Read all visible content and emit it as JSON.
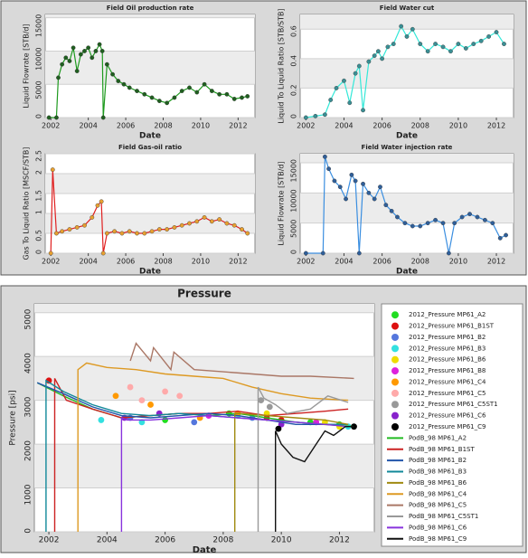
{
  "chart_data": [
    {
      "type": "line",
      "title": "Field Oil production rate",
      "xlabel": "Date",
      "ylabel": "Liquid Flowrate [STB/d]",
      "xlim": [
        2001.7,
        2012.9
      ],
      "xticks": [
        2002,
        2004,
        2006,
        2008,
        2010,
        2012
      ],
      "ylim": [
        0,
        15500
      ],
      "yticks": [
        0,
        5000,
        10000,
        15000
      ],
      "grid": true,
      "markers": true,
      "series": [
        {
          "color": "#1e9a1e",
          "marker_color": "#1f5f1f",
          "x": [
            2001.9,
            2002.3,
            2002.4,
            2002.6,
            2002.8,
            2003.0,
            2003.2,
            2003.4,
            2003.6,
            2003.8,
            2004.0,
            2004.2,
            2004.4,
            2004.6,
            2004.75,
            2004.8,
            2005.0,
            2005.3,
            2005.6,
            2005.9,
            2006.2,
            2006.6,
            2007.0,
            2007.4,
            2007.8,
            2008.2,
            2008.6,
            2009.0,
            2009.4,
            2009.8,
            2010.2,
            2010.6,
            2011.0,
            2011.4,
            2011.8,
            2012.2,
            2012.5
          ],
          "values": [
            0,
            0,
            6000,
            8000,
            9000,
            8500,
            10500,
            7000,
            9500,
            10000,
            10500,
            9000,
            10000,
            11000,
            10000,
            0,
            8000,
            6500,
            5500,
            5000,
            4500,
            4000,
            3500,
            3000,
            2500,
            2200,
            3000,
            4000,
            4500,
            3800,
            5000,
            4000,
            3500,
            3500,
            2800,
            3000,
            3200
          ]
        }
      ]
    },
    {
      "type": "line",
      "title": "Field Water cut",
      "xlabel": "Date",
      "ylabel": "Liquid To Liquid Ratio [STB/STB]",
      "xlim": [
        2001.7,
        2012.9
      ],
      "xticks": [
        2002,
        2004,
        2006,
        2008,
        2010,
        2012
      ],
      "ylim": [
        0,
        0.7
      ],
      "yticks": [
        0,
        0.2,
        0.4,
        0.6
      ],
      "grid": true,
      "markers": true,
      "series": [
        {
          "color": "#33e8d8",
          "marker_color": "#3a8f95",
          "x": [
            2002.0,
            2002.5,
            2003.0,
            2003.3,
            2003.6,
            2004.0,
            2004.3,
            2004.6,
            2004.8,
            2005.0,
            2005.3,
            2005.6,
            2005.8,
            2006.0,
            2006.3,
            2006.6,
            2007.0,
            2007.3,
            2007.6,
            2008.0,
            2008.4,
            2008.8,
            2009.2,
            2009.6,
            2010.0,
            2010.4,
            2010.8,
            2011.2,
            2011.6,
            2012.0,
            2012.4
          ],
          "values": [
            0,
            0.01,
            0.02,
            0.12,
            0.2,
            0.25,
            0.1,
            0.3,
            0.35,
            0.05,
            0.38,
            0.42,
            0.45,
            0.4,
            0.48,
            0.5,
            0.62,
            0.55,
            0.6,
            0.5,
            0.45,
            0.5,
            0.48,
            0.45,
            0.5,
            0.47,
            0.5,
            0.52,
            0.55,
            0.58,
            0.5
          ]
        }
      ]
    },
    {
      "type": "line",
      "title": "Field Gas-oil ratio",
      "xlabel": "Date",
      "ylabel": "Gas To Liquid Ratio [MSCF/STB]",
      "xlim": [
        2001.7,
        2012.9
      ],
      "xticks": [
        2002,
        2004,
        2006,
        2008,
        2010,
        2012
      ],
      "ylim": [
        0,
        2.5
      ],
      "yticks": [
        0,
        0.5,
        1,
        1.5,
        2,
        2.5
      ],
      "grid": true,
      "markers": true,
      "series": [
        {
          "color": "#e02020",
          "marker_color": "#e8a030",
          "x": [
            2002.0,
            2002.1,
            2002.3,
            2002.6,
            2003.0,
            2003.4,
            2003.8,
            2004.2,
            2004.5,
            2004.7,
            2004.8,
            2005.0,
            2005.4,
            2005.8,
            2006.2,
            2006.6,
            2007.0,
            2007.4,
            2007.8,
            2008.2,
            2008.6,
            2009.0,
            2009.4,
            2009.8,
            2010.2,
            2010.6,
            2011.0,
            2011.4,
            2011.8,
            2012.2,
            2012.5
          ],
          "values": [
            0,
            2.1,
            0.5,
            0.55,
            0.6,
            0.65,
            0.7,
            0.9,
            1.2,
            1.3,
            0,
            0.5,
            0.55,
            0.5,
            0.55,
            0.5,
            0.5,
            0.55,
            0.6,
            0.6,
            0.65,
            0.7,
            0.75,
            0.8,
            0.9,
            0.8,
            0.85,
            0.75,
            0.7,
            0.6,
            0.5
          ]
        }
      ]
    },
    {
      "type": "line",
      "title": "Field Water injection rate",
      "xlabel": "Date",
      "ylabel": "Liquid Flowrate [STB/d]",
      "xlim": [
        2001.7,
        2012.9
      ],
      "xticks": [
        2002,
        2004,
        2006,
        2008,
        2010,
        2012
      ],
      "ylim": [
        0,
        16500
      ],
      "yticks": [
        0,
        5000,
        10000,
        15000
      ],
      "grid": true,
      "markers": true,
      "series": [
        {
          "color": "#3a8ee0",
          "marker_color": "#2f5f9a",
          "x": [
            2002.0,
            2002.9,
            2003.0,
            2003.2,
            2003.5,
            2003.8,
            2004.1,
            2004.4,
            2004.6,
            2004.8,
            2005.0,
            2005.3,
            2005.6,
            2005.9,
            2006.2,
            2006.5,
            2006.8,
            2007.2,
            2007.6,
            2008.0,
            2008.4,
            2008.8,
            2009.2,
            2009.5,
            2009.8,
            2010.2,
            2010.6,
            2011.0,
            2011.4,
            2011.8,
            2012.2,
            2012.5
          ],
          "values": [
            0,
            0,
            16000,
            14000,
            12000,
            11000,
            9000,
            13000,
            12000,
            0,
            11500,
            10000,
            9000,
            11000,
            8000,
            7000,
            6000,
            5000,
            4500,
            4500,
            5000,
            5500,
            5000,
            0,
            5000,
            6000,
            6500,
            6000,
            5500,
            5000,
            2500,
            3000
          ]
        }
      ]
    },
    {
      "type": "line",
      "title": "Pressure",
      "xlabel": "Date",
      "ylabel": "Pressure [psi]",
      "xlim": [
        2001.5,
        2013.2
      ],
      "xticks": [
        2002,
        2004,
        2006,
        2008,
        2010,
        2012
      ],
      "ylim": [
        0,
        5200
      ],
      "yticks": [
        0,
        1000,
        2000,
        3000,
        4000,
        5000
      ],
      "grid": true,
      "legend": "right",
      "series": [
        {
          "name": "2012_Pressure MP61_A2",
          "style": "markers",
          "color": "#22dd22",
          "x": [
            2006.0,
            2008.2,
            2011.0,
            2012.0
          ],
          "values": [
            2550,
            2700,
            2500,
            2450
          ]
        },
        {
          "name": "2012_Pressure MP61_B1ST",
          "style": "markers",
          "color": "#dd1111",
          "x": [
            2002.0,
            2009.5,
            2010.0
          ],
          "values": [
            3450,
            2600,
            2550
          ]
        },
        {
          "name": "2012_Pressure MP61_B2",
          "style": "markers",
          "color": "#5577dd",
          "x": [
            2004.8,
            2007.0,
            2009.0
          ],
          "values": [
            2600,
            2500,
            2600
          ]
        },
        {
          "name": "2012_Pressure MP61_B3",
          "style": "markers",
          "color": "#33e0e0",
          "x": [
            2003.8,
            2005.2,
            2008.5,
            2012.3
          ],
          "values": [
            2550,
            2500,
            2650,
            2400
          ]
        },
        {
          "name": "2012_Pressure MP61_B6",
          "style": "markers",
          "color": "#eedd00",
          "x": [
            2009.5,
            2011.5,
            2012.0
          ],
          "values": [
            2700,
            2500,
            2400
          ]
        },
        {
          "name": "2012_Pressure MP61_B8",
          "style": "markers",
          "color": "#dd22dd",
          "x": [
            2007.5,
            2011.2
          ],
          "values": [
            2650,
            2500
          ]
        },
        {
          "name": "2012_Pressure MP61_C4",
          "style": "markers",
          "color": "#ff9900",
          "x": [
            2004.3,
            2005.5,
            2007.2,
            2008.5
          ],
          "values": [
            3100,
            2900,
            2600,
            2700
          ]
        },
        {
          "name": "2012_Pressure MP61_C5",
          "style": "markers",
          "color": "#ffaaaa",
          "x": [
            2004.8,
            2005.2,
            2006.0,
            2006.5
          ],
          "values": [
            3300,
            3000,
            3200,
            3100
          ]
        },
        {
          "name": "2012_Pressure MP61_C5ST1",
          "style": "markers",
          "color": "#999999",
          "x": [
            2009.3,
            2009.6
          ],
          "values": [
            3000,
            2850
          ]
        },
        {
          "name": "2012_Pressure MP61_C6",
          "style": "markers",
          "color": "#8822cc",
          "x": [
            2004.6,
            2005.8,
            2010.0
          ],
          "values": [
            2600,
            2700,
            2450
          ]
        },
        {
          "name": "2012_Pressure MP61_C9",
          "style": "markers",
          "color": "#000000",
          "x": [
            2009.9,
            2012.5
          ],
          "values": [
            2350,
            2400
          ]
        },
        {
          "name": "PodB_98 MP61_A2",
          "style": "line",
          "color": "#22bb22",
          "x": [
            2001.6,
            2002.5,
            2003.5,
            2004.5,
            2005.5,
            2006.5,
            2007.5,
            2008.5,
            2009.5,
            2010.5,
            2011.5,
            2012.5
          ],
          "values": [
            3400,
            3100,
            2800,
            2600,
            2650,
            2700,
            2650,
            2700,
            2600,
            2500,
            2450,
            2400
          ]
        },
        {
          "name": "PodB_98 MP61_B1ST",
          "style": "line",
          "color": "#cc2222",
          "x": [
            2002.2,
            2002.2,
            2002.6,
            2003.5,
            2004.5,
            2005.5,
            2006.5,
            2007.5,
            2008.5,
            2009.5,
            2010.5,
            2011.5,
            2012.3
          ],
          "values": [
            0,
            3500,
            3000,
            2800,
            2600,
            2650,
            2700,
            2700,
            2750,
            2650,
            2700,
            2750,
            2800
          ]
        },
        {
          "name": "PodB_98 MP61_B2",
          "style": "line",
          "color": "#2255aa",
          "x": [
            2001.6,
            2002.5,
            2003.5,
            2004.5,
            2005.5,
            2006.5,
            2007.5,
            2008.5,
            2009.5,
            2010.5,
            2011.5,
            2012.3
          ],
          "values": [
            3400,
            3150,
            2850,
            2650,
            2600,
            2650,
            2700,
            2650,
            2550,
            2450,
            2450,
            2450
          ]
        },
        {
          "name": "PodB_98 MP61_B3",
          "style": "line",
          "color": "#118899",
          "x": [
            2001.9,
            2001.9,
            2002.5,
            2003.5,
            2004.5,
            2005.5,
            2006.5,
            2007.5,
            2008.5,
            2009.5,
            2010.5,
            2011.5,
            2012.3
          ],
          "values": [
            0,
            3450,
            3200,
            2900,
            2700,
            2650,
            2700,
            2650,
            2600,
            2550,
            2500,
            2450,
            2450
          ]
        },
        {
          "name": "PodB_98 MP61_B6",
          "style": "line",
          "color": "#a08a10",
          "x": [
            2008.4,
            2008.4,
            2008.6,
            2009.5,
            2010.5,
            2011.5,
            2012.3
          ],
          "values": [
            0,
            2700,
            2700,
            2650,
            2600,
            2550,
            2450
          ]
        },
        {
          "name": "PodB_98 MP61_C4",
          "style": "line",
          "color": "#dd9922",
          "x": [
            2003.0,
            2003.0,
            2003.3,
            2004.0,
            2005.0,
            2006.0,
            2007.0,
            2008.0,
            2009.0,
            2010.0,
            2011.0,
            2012.3
          ],
          "values": [
            0,
            3700,
            3850,
            3750,
            3700,
            3600,
            3550,
            3500,
            3300,
            3150,
            3050,
            3000
          ]
        },
        {
          "name": "PodB_98 MP61_C5",
          "style": "line",
          "color": "#aa7766",
          "x": [
            2004.8,
            2005.0,
            2005.5,
            2005.6,
            2006.2,
            2006.3,
            2007.0,
            2008.0,
            2009.0,
            2010.0,
            2011.0,
            2012.5
          ],
          "values": [
            3900,
            4300,
            3900,
            4200,
            3700,
            4100,
            3700,
            3650,
            3600,
            3550,
            3550,
            3500
          ]
        },
        {
          "name": "PodB_98 MP61_C5ST1",
          "style": "line",
          "color": "#999999",
          "x": [
            2009.2,
            2009.2,
            2009.4,
            2009.8,
            2010.2,
            2011.0,
            2011.6,
            2012.3
          ],
          "values": [
            0,
            3300,
            3050,
            2900,
            2700,
            2800,
            3100,
            2950
          ]
        },
        {
          "name": "PodB_98 MP61_C6",
          "style": "line",
          "color": "#8833dd",
          "x": [
            2004.5,
            2004.5,
            2004.7,
            2005.5,
            2006.5,
            2007.5,
            2008.5,
            2009.5,
            2010.5,
            2011.5,
            2012.3
          ],
          "values": [
            0,
            2600,
            2550,
            2550,
            2600,
            2650,
            2600,
            2550,
            2500,
            2450,
            2400
          ]
        },
        {
          "name": "PodB_98 MP61_C9",
          "style": "line",
          "color": "#111111",
          "x": [
            2009.8,
            2009.8,
            2010.0,
            2010.4,
            2010.8,
            2011.2,
            2011.5,
            2011.8,
            2012.2,
            2012.5
          ],
          "values": [
            0,
            2300,
            2000,
            1700,
            1600,
            2000,
            2300,
            2200,
            2400,
            2400
          ]
        }
      ]
    }
  ]
}
